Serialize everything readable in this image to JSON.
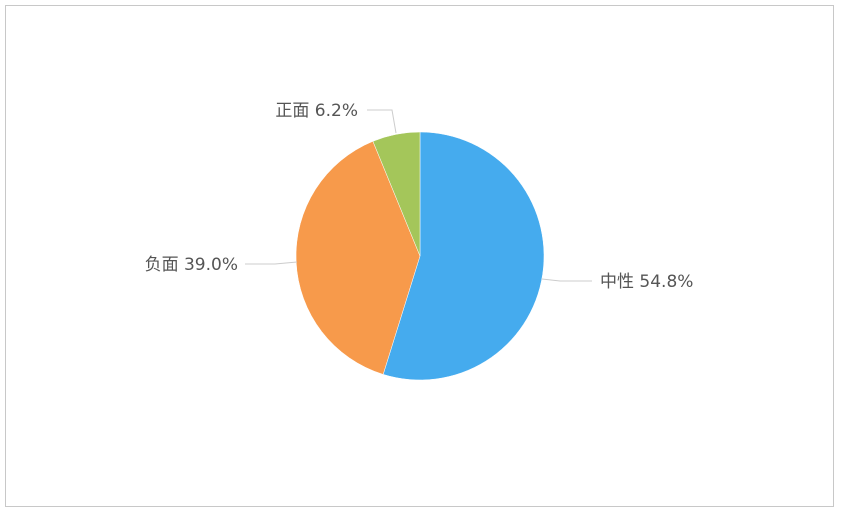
{
  "chart_data": {
    "type": "pie",
    "start_angle": "top, clockwise",
    "slices": [
      {
        "name": "中性",
        "value": 54.8,
        "label": "中性 54.8%",
        "color": "#45abee"
      },
      {
        "name": "负面",
        "value": 39.0,
        "label": "负面 39.0%",
        "color": "#f79a4b"
      },
      {
        "name": "正面",
        "value": 6.2,
        "label": "正面 6.2%",
        "color": "#a4c65a"
      }
    ],
    "legend": "none"
  }
}
